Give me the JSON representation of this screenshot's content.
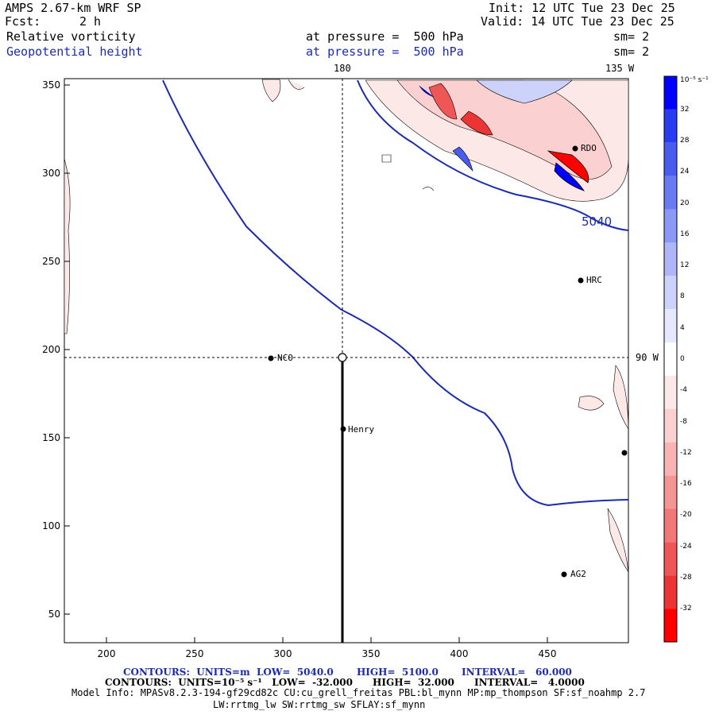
{
  "header": {
    "model": "AMPS 2.67-km WRF SP",
    "init": "Init: 12 UTC Tue 23 Dec 25",
    "fcst_label": "Fcst:",
    "fcst_value": "2 h",
    "valid": "Valid: 14 UTC Tue 23 Dec 25",
    "field1": "Relative vorticity",
    "field1_pressure": "at pressure =  500 hPa",
    "field1_sm": "sm= 2",
    "field2": "Geopotential height",
    "field2_pressure": "at pressure =  500 hPa",
    "field2_sm": "sm= 2"
  },
  "map": {
    "meridian_180": "180",
    "meridian_135w": "135 W",
    "meridian_90w": "90 W",
    "contour_label": "5040",
    "x_ticks": [
      "200",
      "250",
      "300",
      "350",
      "400",
      "450"
    ],
    "y_ticks": [
      "350",
      "300",
      "250",
      "200",
      "150",
      "100",
      "50"
    ],
    "stations": [
      {
        "name": "RDO"
      },
      {
        "name": "HRC"
      },
      {
        "name": "NCO"
      },
      {
        "name": "Henry"
      },
      {
        "name": "AG2"
      }
    ]
  },
  "colorbar": {
    "unit": "10⁻⁵ s⁻¹",
    "labels": [
      "32",
      "28",
      "24",
      "20",
      "16",
      "12",
      "8",
      "4",
      "0",
      "-4",
      "-8",
      "-12",
      "-16",
      "-20",
      "-24",
      "-28",
      "-32"
    ],
    "colors": [
      "#0000ff",
      "#2a3cf0",
      "#4a5cf0",
      "#6a7af2",
      "#8c98f5",
      "#aeb6f8",
      "#ccd2fa",
      "#e6e9fd",
      "#ffffff",
      "#fde8e8",
      "#fbd0d0",
      "#f8b4b4",
      "#f59696",
      "#f27878",
      "#ef5656",
      "#ec3434",
      "#ff0000"
    ]
  },
  "footer": {
    "contours1": "CONTOURS:  UNITS=m  LOW=  5040.0       HIGH=  5100.0       INTERVAL=   60.000",
    "contours2": "CONTOURS:  UNITS=10⁻⁵ s⁻¹   LOW=  -32.000      HIGH=  32.000      INTERVAL=   4.0000",
    "model_info": "Model Info: MPASv8.2.3-194-gf29cd82c CU:cu_grell_freitas PBL:bl_mynn MP:mp_thompson SF:sf_noahmp 2.7",
    "model_info2": "LW:rrtmg_lw SW:rrtmg_sw SFLAY:sf_mynn"
  }
}
